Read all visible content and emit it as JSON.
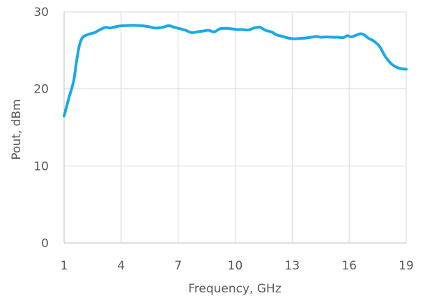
{
  "chart_data": {
    "type": "line",
    "xlabel": "Frequency, GHz",
    "ylabel": "Pout, dBm",
    "xlim": [
      1,
      19
    ],
    "ylim": [
      0,
      30
    ],
    "x_ticks": [
      "1",
      "4",
      "7",
      "10",
      "13",
      "16",
      "19"
    ],
    "y_ticks": [
      "0",
      "10",
      "20",
      "30"
    ],
    "grid": true,
    "legend": "none",
    "colors": {
      "line": "#1ba9e6",
      "grid": "#d9d9d9",
      "axis": "#bfbfbf",
      "text": "#555a5f"
    },
    "series": [
      {
        "x": [
          1.0,
          1.25,
          1.5,
          1.65,
          1.8,
          1.95,
          2.1,
          2.3,
          2.6,
          2.9,
          3.2,
          3.4,
          3.6,
          3.9,
          4.2,
          4.6,
          5.0,
          5.4,
          5.8,
          6.2,
          6.5,
          6.8,
          7.1,
          7.4,
          7.7,
          8.0,
          8.3,
          8.6,
          8.9,
          9.2,
          9.5,
          9.8,
          10.1,
          10.4,
          10.7,
          11.0,
          11.3,
          11.6,
          11.9,
          12.2,
          12.5,
          12.8,
          13.1,
          13.4,
          13.7,
          14.0,
          14.3,
          14.5,
          14.8,
          15.1,
          15.4,
          15.7,
          15.9,
          16.1,
          16.3,
          16.6,
          16.8,
          17.0,
          17.3,
          17.6,
          17.9,
          18.2,
          18.5,
          18.8,
          19.0
        ],
        "y": [
          16.5,
          18.8,
          21.0,
          23.5,
          25.6,
          26.6,
          26.9,
          27.1,
          27.3,
          27.7,
          28.0,
          27.9,
          28.0,
          28.15,
          28.2,
          28.25,
          28.2,
          28.1,
          27.9,
          28.0,
          28.2,
          28.0,
          27.8,
          27.6,
          27.3,
          27.4,
          27.5,
          27.6,
          27.4,
          27.8,
          27.85,
          27.8,
          27.7,
          27.7,
          27.65,
          27.9,
          28.0,
          27.6,
          27.4,
          27.0,
          26.8,
          26.6,
          26.5,
          26.55,
          26.6,
          26.7,
          26.8,
          26.7,
          26.75,
          26.7,
          26.7,
          26.65,
          26.9,
          26.75,
          26.9,
          27.15,
          27.0,
          26.6,
          26.2,
          25.5,
          24.2,
          23.3,
          22.8,
          22.6,
          22.55
        ]
      }
    ]
  }
}
